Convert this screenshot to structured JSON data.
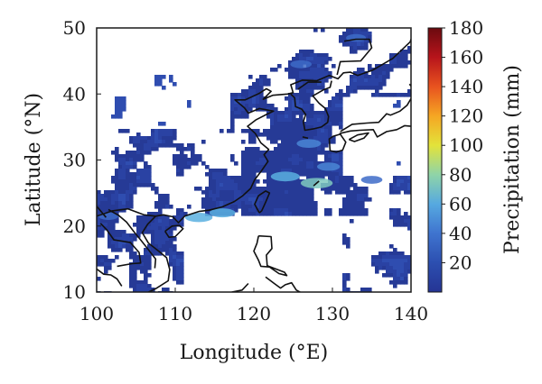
{
  "chart_data": {
    "type": "heatmap",
    "title": "",
    "xlabel": "Longitude (°E)",
    "ylabel": "Latitude (°N)",
    "xlim": [
      100,
      140
    ],
    "ylim": [
      10,
      50
    ],
    "xticks": [
      100,
      110,
      120,
      130,
      140
    ],
    "yticks": [
      10,
      20,
      30,
      40,
      50
    ],
    "colorbar": {
      "label": "Precipitation (mm)",
      "range": [
        0,
        180
      ],
      "ticks": [
        20,
        40,
        60,
        80,
        100,
        120,
        140,
        160,
        180
      ],
      "colors": [
        "#253494",
        "#2c4fb0",
        "#3f74cf",
        "#56a9e0",
        "#8fd4a8",
        "#e3e33a",
        "#f5a623",
        "#e8531f",
        "#b7141b",
        "#6b0a0f"
      ]
    },
    "features": {
      "background": "#ffffff",
      "rain_color": "#2a3f9e",
      "coastline_color": "#111111"
    },
    "rain_hotspots": [
      {
        "lon": 128.0,
        "lat": 26.5,
        "mm": 70
      },
      {
        "lon": 124.0,
        "lat": 27.5,
        "mm": 60
      },
      {
        "lon": 116.0,
        "lat": 22.0,
        "mm": 50
      },
      {
        "lon": 113.0,
        "lat": 21.3,
        "mm": 55
      },
      {
        "lon": 127.0,
        "lat": 32.5,
        "mm": 45
      },
      {
        "lon": 129.5,
        "lat": 29.0,
        "mm": 40
      },
      {
        "lon": 126.0,
        "lat": 44.5,
        "mm": 35
      },
      {
        "lon": 133.0,
        "lat": 48.5,
        "mm": 30
      },
      {
        "lon": 135.0,
        "lat": 27.0,
        "mm": 35
      },
      {
        "lon": 101.5,
        "lat": 21.5,
        "mm": 30
      }
    ]
  }
}
